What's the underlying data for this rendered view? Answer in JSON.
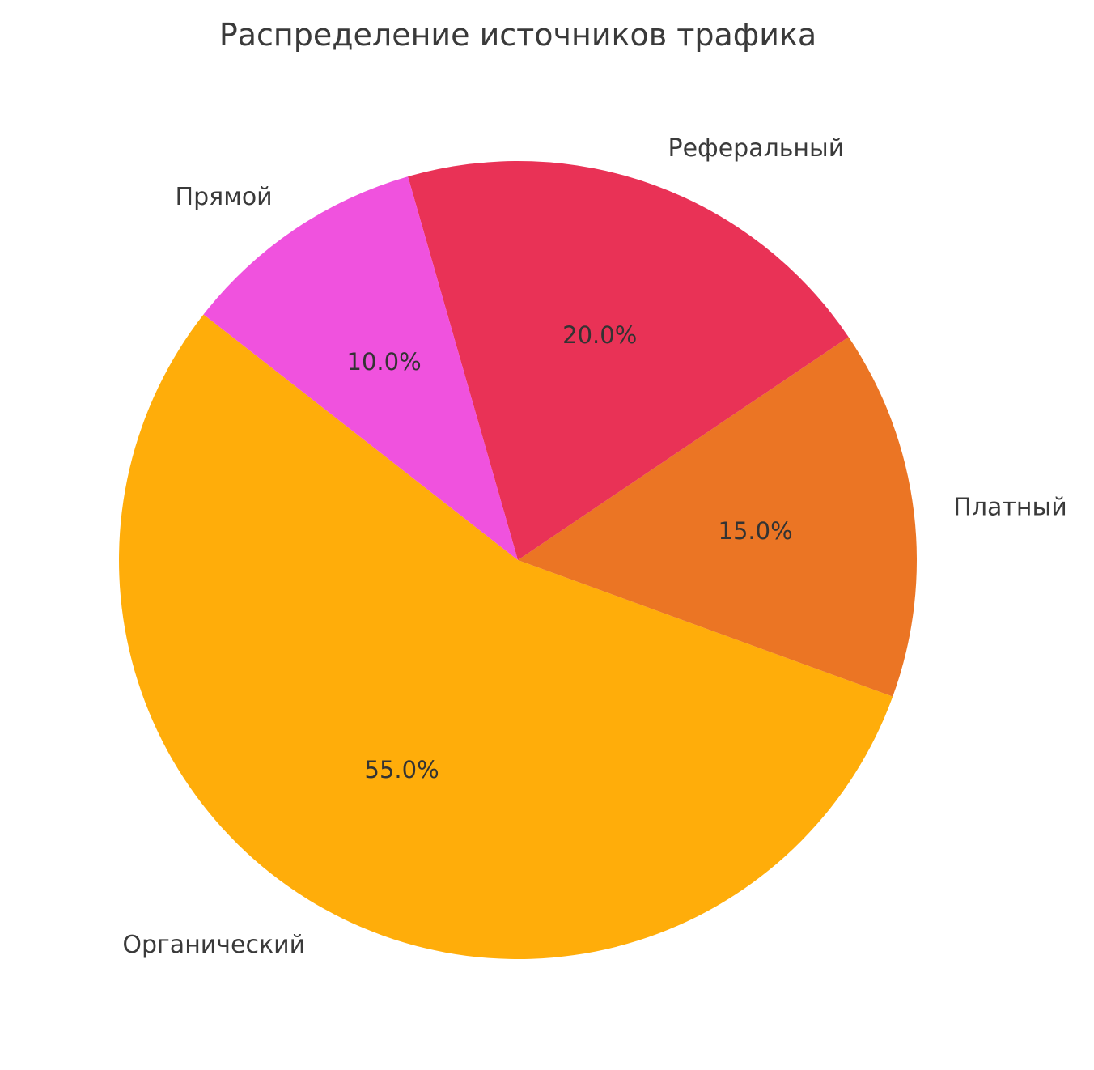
{
  "page": {
    "background": "#ffffff"
  },
  "chart_data": {
    "type": "pie",
    "title": "Распределение источников трафика",
    "labels": [
      "Органический",
      "Платный",
      "Реферальный",
      "Прямой"
    ],
    "values": [
      55.0,
      15.0,
      20.0,
      10.0
    ],
    "autopct_labels": [
      "55.0%",
      "15.0%",
      "20.0%",
      "10.0%"
    ],
    "colors": [
      "#FFAD0A",
      "#EB7524",
      "#E93256",
      "#F052DE"
    ],
    "startangle": 142,
    "direction": "counterclockwise",
    "legend_position": "none",
    "title_color": "#3a3a3a",
    "label_color": "#3a3a3a",
    "pct_color": "#333333"
  }
}
